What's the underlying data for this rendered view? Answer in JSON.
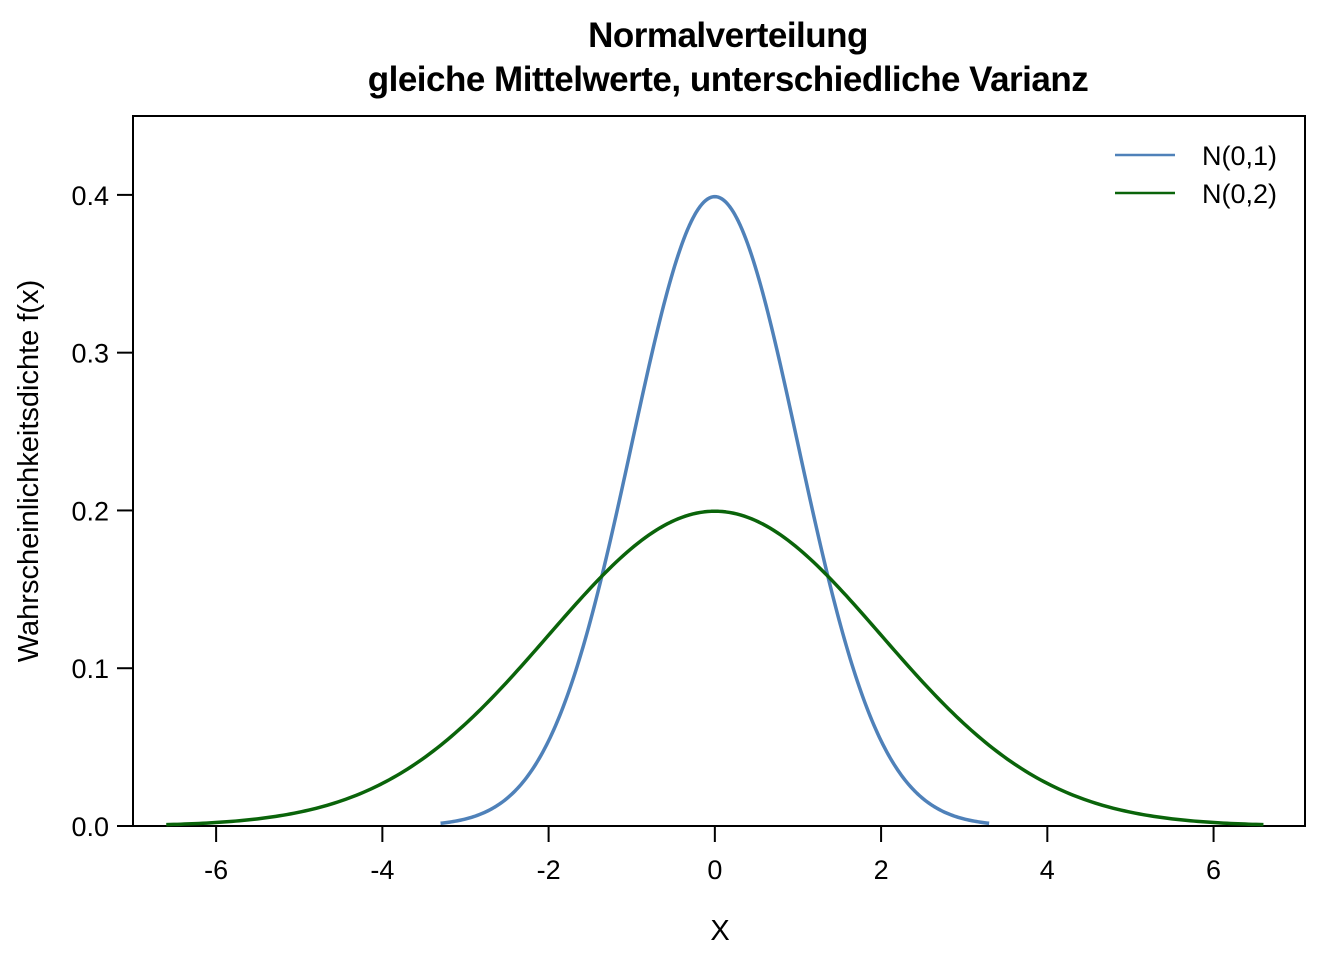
{
  "chart_data": {
    "type": "line",
    "title": "Normalverteilung",
    "subtitle": "gleiche Mittelwerte, unterschiedliche Varianz",
    "xlabel": "X",
    "ylabel": "Wahrscheinlichkeitsdichte f(x)",
    "xlim": [
      -7,
      7.1
    ],
    "ylim": [
      0,
      0.45
    ],
    "xticks": [
      -6,
      -4,
      -2,
      0,
      2,
      4,
      6
    ],
    "xtick_labels": [
      "-6",
      "-4",
      "-2",
      "0",
      "2",
      "4",
      "6"
    ],
    "yticks": [
      0.0,
      0.1,
      0.2,
      0.3,
      0.4
    ],
    "ytick_labels": [
      "0.0",
      "0.1",
      "0.2",
      "0.3",
      "0.4"
    ],
    "grid": false,
    "legend_position": "top-right",
    "series": [
      {
        "name": "N(0,1)",
        "color": "#4f81b9",
        "x": [
          -3.3,
          -3.0,
          -2.75,
          -2.5,
          -2.25,
          -2.0,
          -1.75,
          -1.5,
          -1.25,
          -1.0,
          -0.75,
          -0.5,
          -0.25,
          0.0,
          0.25,
          0.5,
          0.75,
          1.0,
          1.25,
          1.5,
          1.75,
          2.0,
          2.25,
          2.5,
          2.75,
          3.0,
          3.3
        ],
        "y": [
          0.0017,
          0.0044,
          0.0091,
          0.0175,
          0.0317,
          0.054,
          0.0863,
          0.1295,
          0.1826,
          0.242,
          0.3011,
          0.3521,
          0.3867,
          0.3989,
          0.3867,
          0.3521,
          0.3011,
          0.242,
          0.1826,
          0.1295,
          0.0863,
          0.054,
          0.0317,
          0.0175,
          0.0091,
          0.0044,
          0.0017
        ]
      },
      {
        "name": "N(0,2)",
        "color": "#0a640a",
        "x": [
          -6.6,
          -6.0,
          -5.5,
          -5.0,
          -4.5,
          -4.0,
          -3.5,
          -3.0,
          -2.5,
          -2.0,
          -1.5,
          -1.0,
          -0.5,
          0.0,
          0.5,
          1.0,
          1.5,
          2.0,
          2.5,
          3.0,
          3.5,
          4.0,
          4.5,
          5.0,
          5.5,
          6.0,
          6.6
        ],
        "y": [
          0.0009,
          0.0022,
          0.0045,
          0.0088,
          0.0159,
          0.027,
          0.0431,
          0.0648,
          0.0913,
          0.121,
          0.1506,
          0.176,
          0.1933,
          0.1995,
          0.1933,
          0.176,
          0.1506,
          0.121,
          0.0913,
          0.0648,
          0.0431,
          0.027,
          0.0159,
          0.0088,
          0.0045,
          0.0022,
          0.0009
        ]
      }
    ]
  }
}
